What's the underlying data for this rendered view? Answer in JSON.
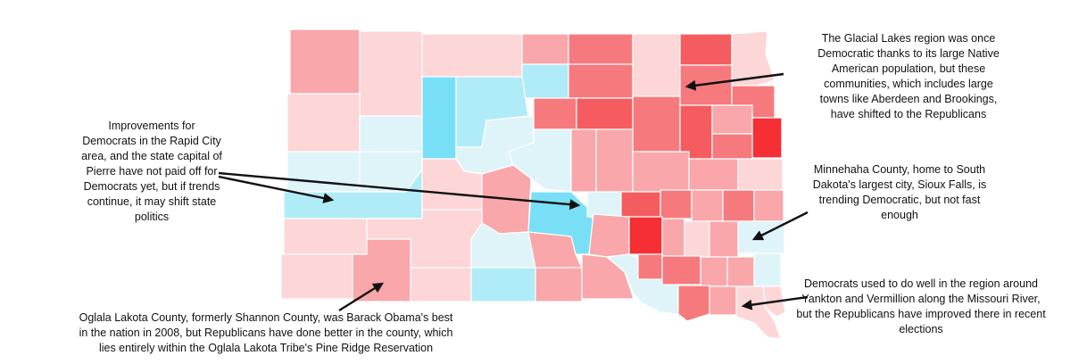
{
  "colors": {
    "dem_strong": "#79dff7",
    "dem_medium": "#b0ecf8",
    "dem_light": "#dff4f9",
    "rep_light": "#fdd6d8",
    "rep_medium": "#f9a7aa",
    "rep_strong": "#f67a7d",
    "rep_darker": "#f55c60",
    "rep_darkest": "#f52f33",
    "border": "#ffffff",
    "arrow": "#111111"
  },
  "annotations": {
    "rapid_city": "Improvements for\nDemocrats in the Rapid City\narea, and the state capital of\nPierre have not paid off for\nDemocrats yet, but if trends\ncontinue, it may shift state\npolitics",
    "glacial_lakes": "The Glacial Lakes region was once\nDemocratic thanks to its large Native\nAmerican population, but these\ncommunities, which includes large\ntowns like Aberdeen and Brookings,\nhave shifted to the Republicans",
    "minnehaha": "Minnehaha County, home to South\nDakota's largest city, Sioux Falls, is\ntrending Democratic, but not fast\nenough",
    "yankton": "Democrats used to do well in the region around\nYankton and Vermillion along the Missouri River,\nbut the Republicans have improved there in recent\nelections",
    "oglala": "Oglala Lakota County, formerly Shannon County, was Barack Obama's best\nin the nation in 2008, but Republicans have done better in the county, which\nlies entirely within the Oglala Lakota Tribe's Pine Ridge Reservation"
  }
}
